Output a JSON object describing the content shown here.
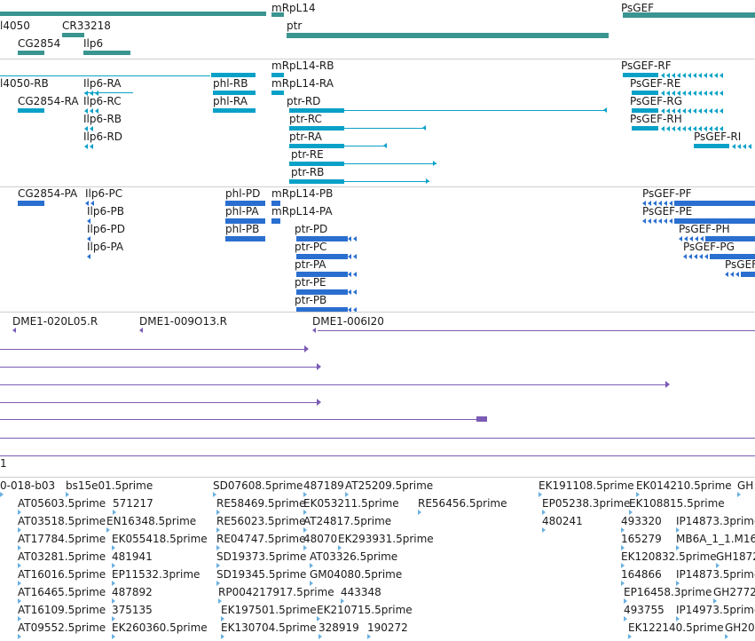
{
  "colors": {
    "gene": "#3a9590",
    "transcript": "#0aa1c8",
    "protein": "#2a6fd0",
    "clone": "#7b5bb5",
    "est": "#6ab0e0",
    "separator": "#cfcfcf"
  },
  "tracks": {
    "genes": {
      "features": [
        {
          "label": "l4050",
          "style": "line"
        },
        {
          "label": "CR33218",
          "style": "bar"
        },
        {
          "label": "mRpL14",
          "style": "bar"
        },
        {
          "label": "PsGEF",
          "style": "bar"
        },
        {
          "label": "ptr",
          "style": "bar"
        },
        {
          "label": "CG2854",
          "style": "bar"
        },
        {
          "label": "Ilp6",
          "style": "bar"
        }
      ]
    },
    "transcripts": {
      "features": [
        {
          "label": "l4050-RB"
        },
        {
          "label": "Ilp6-RA"
        },
        {
          "label": "phl-RB"
        },
        {
          "label": "mRpL14-RB"
        },
        {
          "label": "mRpL14-RA"
        },
        {
          "label": "CG2854-RA"
        },
        {
          "label": "Ilp6-RC"
        },
        {
          "label": "phl-RA"
        },
        {
          "label": "ptr-RD"
        },
        {
          "label": "Ilp6-RB"
        },
        {
          "label": "ptr-RC"
        },
        {
          "label": "Ilp6-RD"
        },
        {
          "label": "ptr-RA"
        },
        {
          "label": "ptr-RE"
        },
        {
          "label": "ptr-RB"
        },
        {
          "label": "PsGEF-RF"
        },
        {
          "label": "PsGEF-RE"
        },
        {
          "label": "PsGEF-RG"
        },
        {
          "label": "PsGEF-RH"
        },
        {
          "label": "PsGEF-RI"
        }
      ]
    },
    "proteins": {
      "features": [
        {
          "label": "CG2854-PA"
        },
        {
          "label": "Ilp6-PC"
        },
        {
          "label": "Ilp6-PB"
        },
        {
          "label": "Ilp6-PD"
        },
        {
          "label": "Ilp6-PA"
        },
        {
          "label": "phl-PD"
        },
        {
          "label": "phl-PA"
        },
        {
          "label": "phl-PB"
        },
        {
          "label": "mRpL14-PB"
        },
        {
          "label": "mRpL14-PA"
        },
        {
          "label": "ptr-PD"
        },
        {
          "label": "ptr-PC"
        },
        {
          "label": "ptr-PA"
        },
        {
          "label": "ptr-PE"
        },
        {
          "label": "ptr-PB"
        },
        {
          "label": "PsGEF-PF"
        },
        {
          "label": "PsGEF-PE"
        },
        {
          "label": "PsGEF-PH"
        },
        {
          "label": "PsGEF-PG"
        },
        {
          "label": "PsGEF"
        }
      ]
    },
    "clones": {
      "features": [
        {
          "label": "DME1-020L05.R"
        },
        {
          "label": "DME1-009O13.R"
        },
        {
          "label": "DME1-006I20"
        },
        {
          "label": "1"
        }
      ]
    },
    "ests": {
      "features": [
        {
          "label": "0-018-b03"
        },
        {
          "label": "bs15e01.5prime"
        },
        {
          "label": "SD07608.5prime"
        },
        {
          "label": "487189"
        },
        {
          "label": "AT25209.5prime"
        },
        {
          "label": "EK191108.5prime"
        },
        {
          "label": "EK014210.5prime"
        },
        {
          "label": "GH"
        },
        {
          "label": "AT05603.5prime"
        },
        {
          "label": "571217"
        },
        {
          "label": "RE58469.5prime"
        },
        {
          "label": "EK053211.5prime"
        },
        {
          "label": "RE56456.5prime"
        },
        {
          "label": "EP05238.3prime"
        },
        {
          "label": "EK108815.5prime"
        },
        {
          "label": "AT03518.5prime"
        },
        {
          "label": "EN16348.5prime"
        },
        {
          "label": "RE56023.5prime"
        },
        {
          "label": "AT24817.5prime"
        },
        {
          "label": "480241"
        },
        {
          "label": "493320"
        },
        {
          "label": "IP14873.3prime"
        },
        {
          "label": "AT17784.5prime"
        },
        {
          "label": "EK055418.5prime"
        },
        {
          "label": "RE04747.5prime"
        },
        {
          "label": "48070"
        },
        {
          "label": "EK293931.5prime"
        },
        {
          "label": "165279"
        },
        {
          "label": "MB6A_1_1.M16"
        },
        {
          "label": "AT03281.5prime"
        },
        {
          "label": "481941"
        },
        {
          "label": "SD19373.5prime"
        },
        {
          "label": "AT03326.5prime"
        },
        {
          "label": "EK120832.5prime"
        },
        {
          "label": "GH1872"
        },
        {
          "label": "AT16016.5prime"
        },
        {
          "label": "EP11532.3prime"
        },
        {
          "label": "SD19345.5prime"
        },
        {
          "label": "GM04080.5prime"
        },
        {
          "label": "164866"
        },
        {
          "label": "IP14873.5prime"
        },
        {
          "label": "AT16465.5prime"
        },
        {
          "label": "487892"
        },
        {
          "label": "RP004217917.5prime"
        },
        {
          "label": "443348"
        },
        {
          "label": "EP16458.3prime"
        },
        {
          "label": "GH2772"
        },
        {
          "label": "AT16109.5prime"
        },
        {
          "label": "375135"
        },
        {
          "label": "EK197501.5prime"
        },
        {
          "label": "EK210715.5prime"
        },
        {
          "label": "493755"
        },
        {
          "label": "IP14973.5prime"
        },
        {
          "label": "AT09552.5prime"
        },
        {
          "label": "EK260360.5prime"
        },
        {
          "label": "EK130704.5prime"
        },
        {
          "label": "328919"
        },
        {
          "label": "190272"
        },
        {
          "label": "EK122140.5prime"
        },
        {
          "label": "GH20"
        }
      ]
    }
  }
}
